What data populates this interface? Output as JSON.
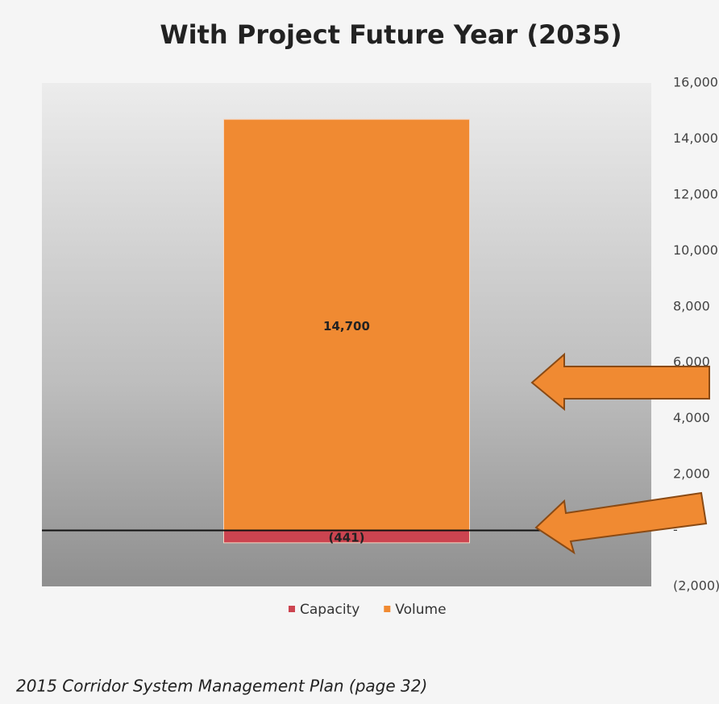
{
  "chart_data": {
    "type": "bar",
    "stacked": true,
    "title": "With Project Future Year (2035)",
    "categories": [
      null
    ],
    "series": [
      {
        "name": "Capacity",
        "color": "#cc4450",
        "values": [
          -441
        ],
        "value_labels": [
          "(441)"
        ]
      },
      {
        "name": "Volume",
        "color": "#f08a32",
        "values": [
          14700
        ],
        "value_labels": [
          "14,700"
        ]
      }
    ],
    "ylim": [
      -2000,
      16000
    ],
    "yticks": [
      {
        "value": -2000,
        "label": "(2,000)"
      },
      {
        "value": 0,
        "label": "-"
      },
      {
        "value": 2000,
        "label": "2,000"
      },
      {
        "value": 4000,
        "label": "4,000"
      },
      {
        "value": 6000,
        "label": "6,000"
      },
      {
        "value": 8000,
        "label": "8,000"
      },
      {
        "value": 10000,
        "label": "10,000"
      },
      {
        "value": 12000,
        "label": "12,000"
      },
      {
        "value": 14000,
        "label": "14,000"
      },
      {
        "value": 16000,
        "label": "16,000"
      }
    ],
    "y_axis_position": "right",
    "legend": "bottom",
    "caption": "2015 Corridor System Management Plan (page 32)"
  }
}
